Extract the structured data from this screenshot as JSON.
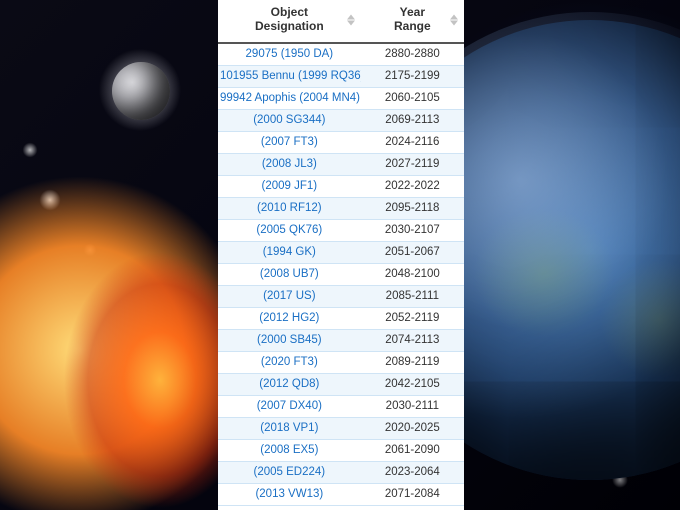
{
  "table": {
    "headers": {
      "col1": "Object\nDesignation",
      "col2": "Year\nRange"
    },
    "header_color": "#333333",
    "link_color": "#1a6fc4",
    "text_color": "#333333",
    "row_alt_bg": "#eef6fc",
    "border_color": "#cfe4f5",
    "rows": [
      {
        "designation": "29075 (1950 DA)",
        "range": "2880-2880"
      },
      {
        "designation": "101955 Bennu (1999 RQ36)",
        "range": "2175-2199"
      },
      {
        "designation": "99942 Apophis (2004 MN4)",
        "range": "2060-2105"
      },
      {
        "designation": "(2000 SG344)",
        "range": "2069-2113"
      },
      {
        "designation": "(2007 FT3)",
        "range": "2024-2116"
      },
      {
        "designation": "(2008 JL3)",
        "range": "2027-2119"
      },
      {
        "designation": "(2009 JF1)",
        "range": "2022-2022"
      },
      {
        "designation": "(2010 RF12)",
        "range": "2095-2118"
      },
      {
        "designation": "(2005 QK76)",
        "range": "2030-2107"
      },
      {
        "designation": "(1994 GK)",
        "range": "2051-2067"
      },
      {
        "designation": "(2008 UB7)",
        "range": "2048-2100"
      },
      {
        "designation": "(2017 US)",
        "range": "2085-2111"
      },
      {
        "designation": "(2012 HG2)",
        "range": "2052-2119"
      },
      {
        "designation": "(2000 SB45)",
        "range": "2074-2113"
      },
      {
        "designation": "(2020 FT3)",
        "range": "2089-2119"
      },
      {
        "designation": "(2012 QD8)",
        "range": "2042-2105"
      },
      {
        "designation": "(2007 DX40)",
        "range": "2030-2111"
      },
      {
        "designation": "(2018 VP1)",
        "range": "2020-2025"
      },
      {
        "designation": "(2008 EX5)",
        "range": "2061-2090"
      },
      {
        "designation": "(2005 ED224)",
        "range": "2023-2064"
      },
      {
        "designation": "(2013 VW13)",
        "range": "2071-2084"
      }
    ]
  }
}
